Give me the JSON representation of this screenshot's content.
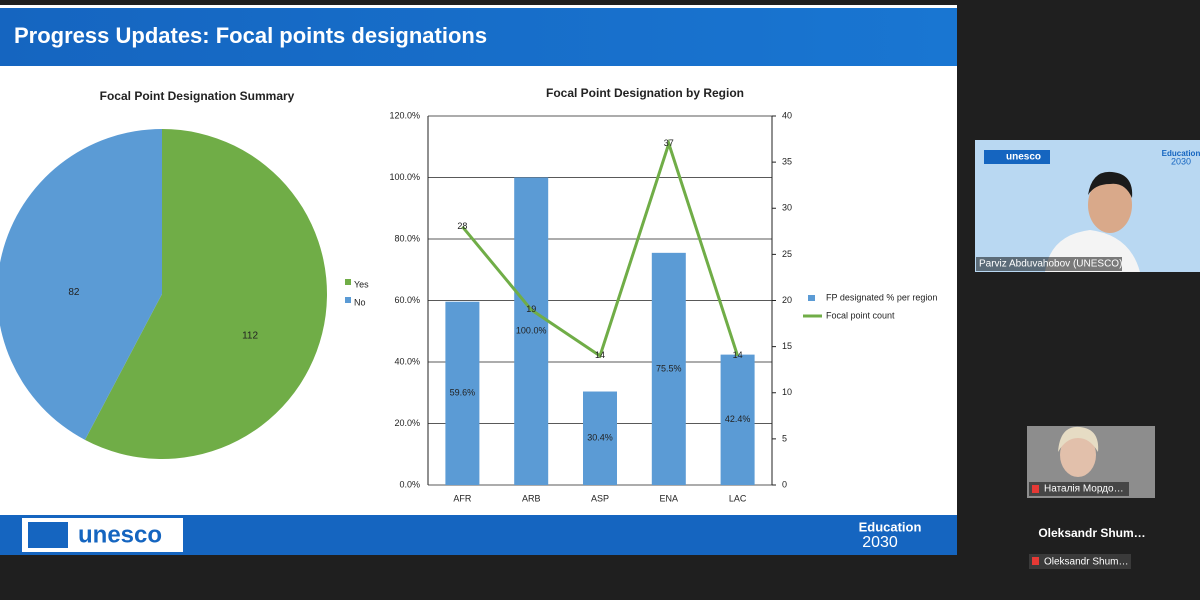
{
  "slide": {
    "title": "Progress Updates: Focal points designations",
    "footer_logo": "unesco",
    "footer_brand": "Education",
    "footer_year": "2030"
  },
  "chart_data": [
    {
      "type": "pie",
      "title": "Focal Point Designation Summary",
      "categories": [
        "Yes",
        "No"
      ],
      "values": [
        112,
        82
      ],
      "colors": [
        "#70ad47",
        "#5b9bd5"
      ],
      "legend": "right"
    },
    {
      "type": "bar",
      "title": "Focal Point Designation by Region",
      "categories": [
        "AFR",
        "ARB",
        "ASP",
        "ENA",
        "LAC"
      ],
      "series": [
        {
          "name": "FP designated % per region",
          "color": "#5b9bd5",
          "values": [
            59.6,
            100.0,
            30.4,
            75.5,
            42.4
          ],
          "value_labels": [
            "59.6%",
            "100.0%",
            "30.4%",
            "75.5%",
            "42.4%"
          ]
        },
        {
          "name": "Focal point count",
          "type": "line",
          "axis": "y2",
          "color": "#70ad47",
          "values": [
            28,
            19,
            14,
            37,
            14
          ]
        }
      ],
      "ylim": [
        0,
        120
      ],
      "yticks": [
        {
          "value": 0,
          "label": "0.0%"
        },
        {
          "value": 20,
          "label": "20.0%"
        },
        {
          "value": 40,
          "label": "40.0%"
        },
        {
          "value": 60,
          "label": "60.0%"
        },
        {
          "value": 80,
          "label": "80.0%"
        },
        {
          "value": 100,
          "label": "100.0%"
        },
        {
          "value": 120,
          "label": "120.0%"
        }
      ],
      "y2lim": [
        0,
        40
      ],
      "y2ticks": [
        0,
        5,
        10,
        15,
        20,
        25,
        30,
        35,
        40
      ],
      "grid": true,
      "legend": "right"
    }
  ],
  "participants": [
    {
      "name": "Parviz Abduvahobov (UNESCO)",
      "badge": "unesco",
      "brand": "Education",
      "year": "2030"
    },
    {
      "name": "Наталія Мордо…"
    },
    {
      "name": "Oleksandr Shum…",
      "label": "Oleksandr Shum…"
    }
  ]
}
